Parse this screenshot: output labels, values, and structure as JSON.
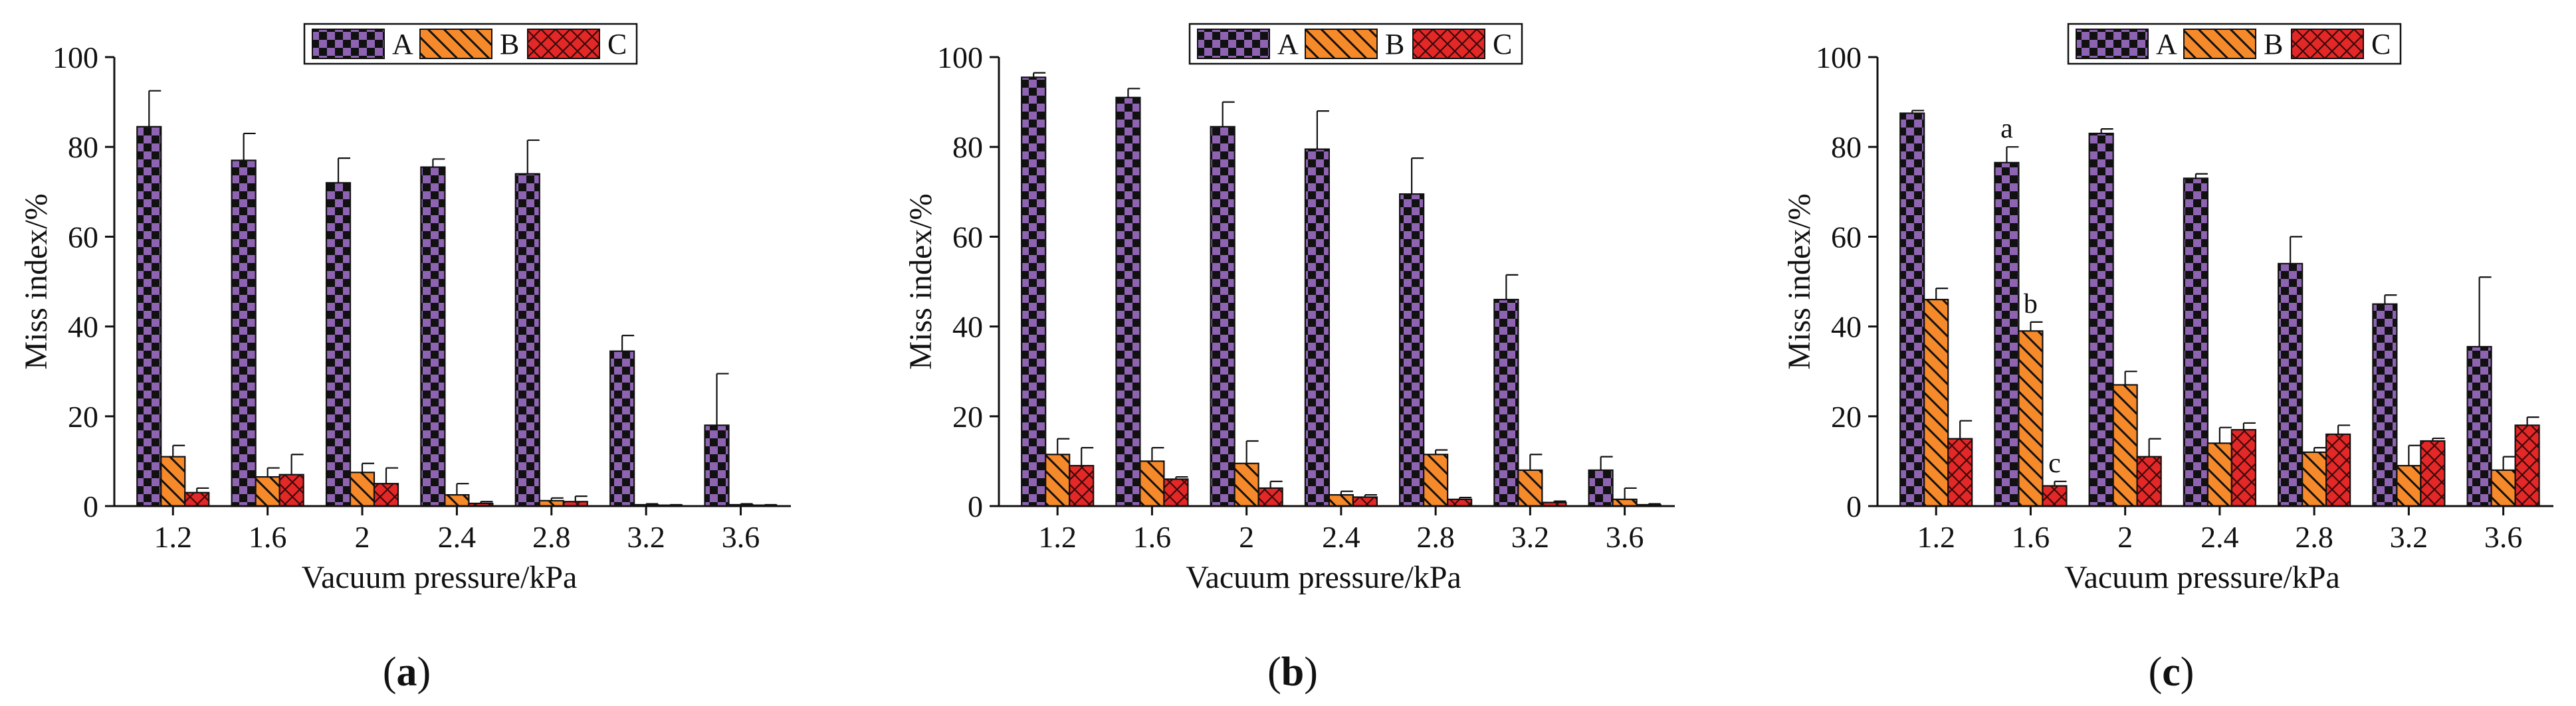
{
  "figure": {
    "panels": [
      "(a)",
      "(b)",
      "(c)"
    ]
  },
  "colors": {
    "A_fill": "#8e64b2",
    "A_check": "#111111",
    "B_fill": "#f6892a",
    "B_hatch": "#111111",
    "C_fill": "#e42727",
    "C_hatch": "#3b0a0a",
    "axis": "#111111"
  },
  "chart_data": [
    {
      "type": "bar",
      "panel": "(a)",
      "title": "",
      "xlabel": "Vacuum pressure/kPa",
      "ylabel": "Miss index/%",
      "ylim": [
        0,
        100
      ],
      "yticks": [
        0,
        20,
        40,
        60,
        80,
        100
      ],
      "categories": [
        "1.2",
        "1.6",
        "2",
        "2.4",
        "2.8",
        "3.2",
        "3.6"
      ],
      "legend_position": "top-center",
      "series": [
        {
          "name": "A",
          "values": [
            84.5,
            77,
            72,
            75.5,
            74,
            34.5,
            18
          ],
          "errors": [
            8,
            6,
            5.5,
            1.8,
            7.5,
            3.5,
            11.5
          ]
        },
        {
          "name": "B",
          "values": [
            11,
            6.5,
            7.5,
            2.5,
            1.2,
            0.3,
            0.3
          ],
          "errors": [
            2.5,
            2,
            2,
            2.5,
            0.6,
            0.2,
            0.2
          ]
        },
        {
          "name": "C",
          "values": [
            3,
            7,
            5,
            0.6,
            1,
            0.2,
            0.2
          ],
          "errors": [
            1,
            4.5,
            3.5,
            0.4,
            1.2,
            0.1,
            0.1
          ]
        }
      ],
      "annotations": []
    },
    {
      "type": "bar",
      "panel": "(b)",
      "title": "",
      "xlabel": "Vacuum pressure/kPa",
      "ylabel": "Miss index/%",
      "ylim": [
        0,
        100
      ],
      "yticks": [
        0,
        20,
        40,
        60,
        80,
        100
      ],
      "categories": [
        "1.2",
        "1.6",
        "2",
        "2.4",
        "2.8",
        "3.2",
        "3.6"
      ],
      "legend_position": "top-center",
      "series": [
        {
          "name": "A",
          "values": [
            95.5,
            91,
            84.5,
            79.5,
            69.5,
            46,
            8
          ],
          "errors": [
            1,
            2,
            5.5,
            8.5,
            8,
            5.5,
            3
          ]
        },
        {
          "name": "B",
          "values": [
            11.5,
            10,
            9.5,
            2.5,
            11.5,
            8,
            1.5
          ],
          "errors": [
            3.5,
            3,
            5,
            0.8,
            1,
            3.5,
            2.5
          ]
        },
        {
          "name": "C",
          "values": [
            9,
            6,
            4,
            2,
            1.5,
            0.8,
            0.3
          ],
          "errors": [
            4,
            0.5,
            1.5,
            0.5,
            0.4,
            0.3,
            0.2
          ]
        }
      ],
      "annotations": []
    },
    {
      "type": "bar",
      "panel": "(c)",
      "title": "",
      "xlabel": "Vacuum pressure/kPa",
      "ylabel": "Miss index/%",
      "ylim": [
        0,
        100
      ],
      "yticks": [
        0,
        20,
        40,
        60,
        80,
        100
      ],
      "categories": [
        "1.2",
        "1.6",
        "2",
        "2.4",
        "2.8",
        "3.2",
        "3.6"
      ],
      "legend_position": "top-center",
      "series": [
        {
          "name": "A",
          "values": [
            87.5,
            76.5,
            83,
            73,
            54,
            45,
            35.5
          ],
          "errors": [
            0.6,
            3.5,
            1,
            1,
            6,
            2,
            15.5
          ]
        },
        {
          "name": "B",
          "values": [
            46,
            39,
            27,
            14,
            12,
            9,
            8
          ],
          "errors": [
            2.5,
            2,
            3,
            3.5,
            1,
            4.5,
            3
          ]
        },
        {
          "name": "C",
          "values": [
            15,
            4.5,
            11,
            17,
            16,
            14.5,
            18
          ],
          "errors": [
            4,
            1,
            4,
            1.5,
            2,
            0.6,
            1.8
          ]
        }
      ],
      "annotations": [
        {
          "text": "a",
          "category": "1.6",
          "series": "A"
        },
        {
          "text": "b",
          "category": "1.6",
          "series": "B"
        },
        {
          "text": "c",
          "category": "1.6",
          "series": "C"
        }
      ]
    }
  ]
}
